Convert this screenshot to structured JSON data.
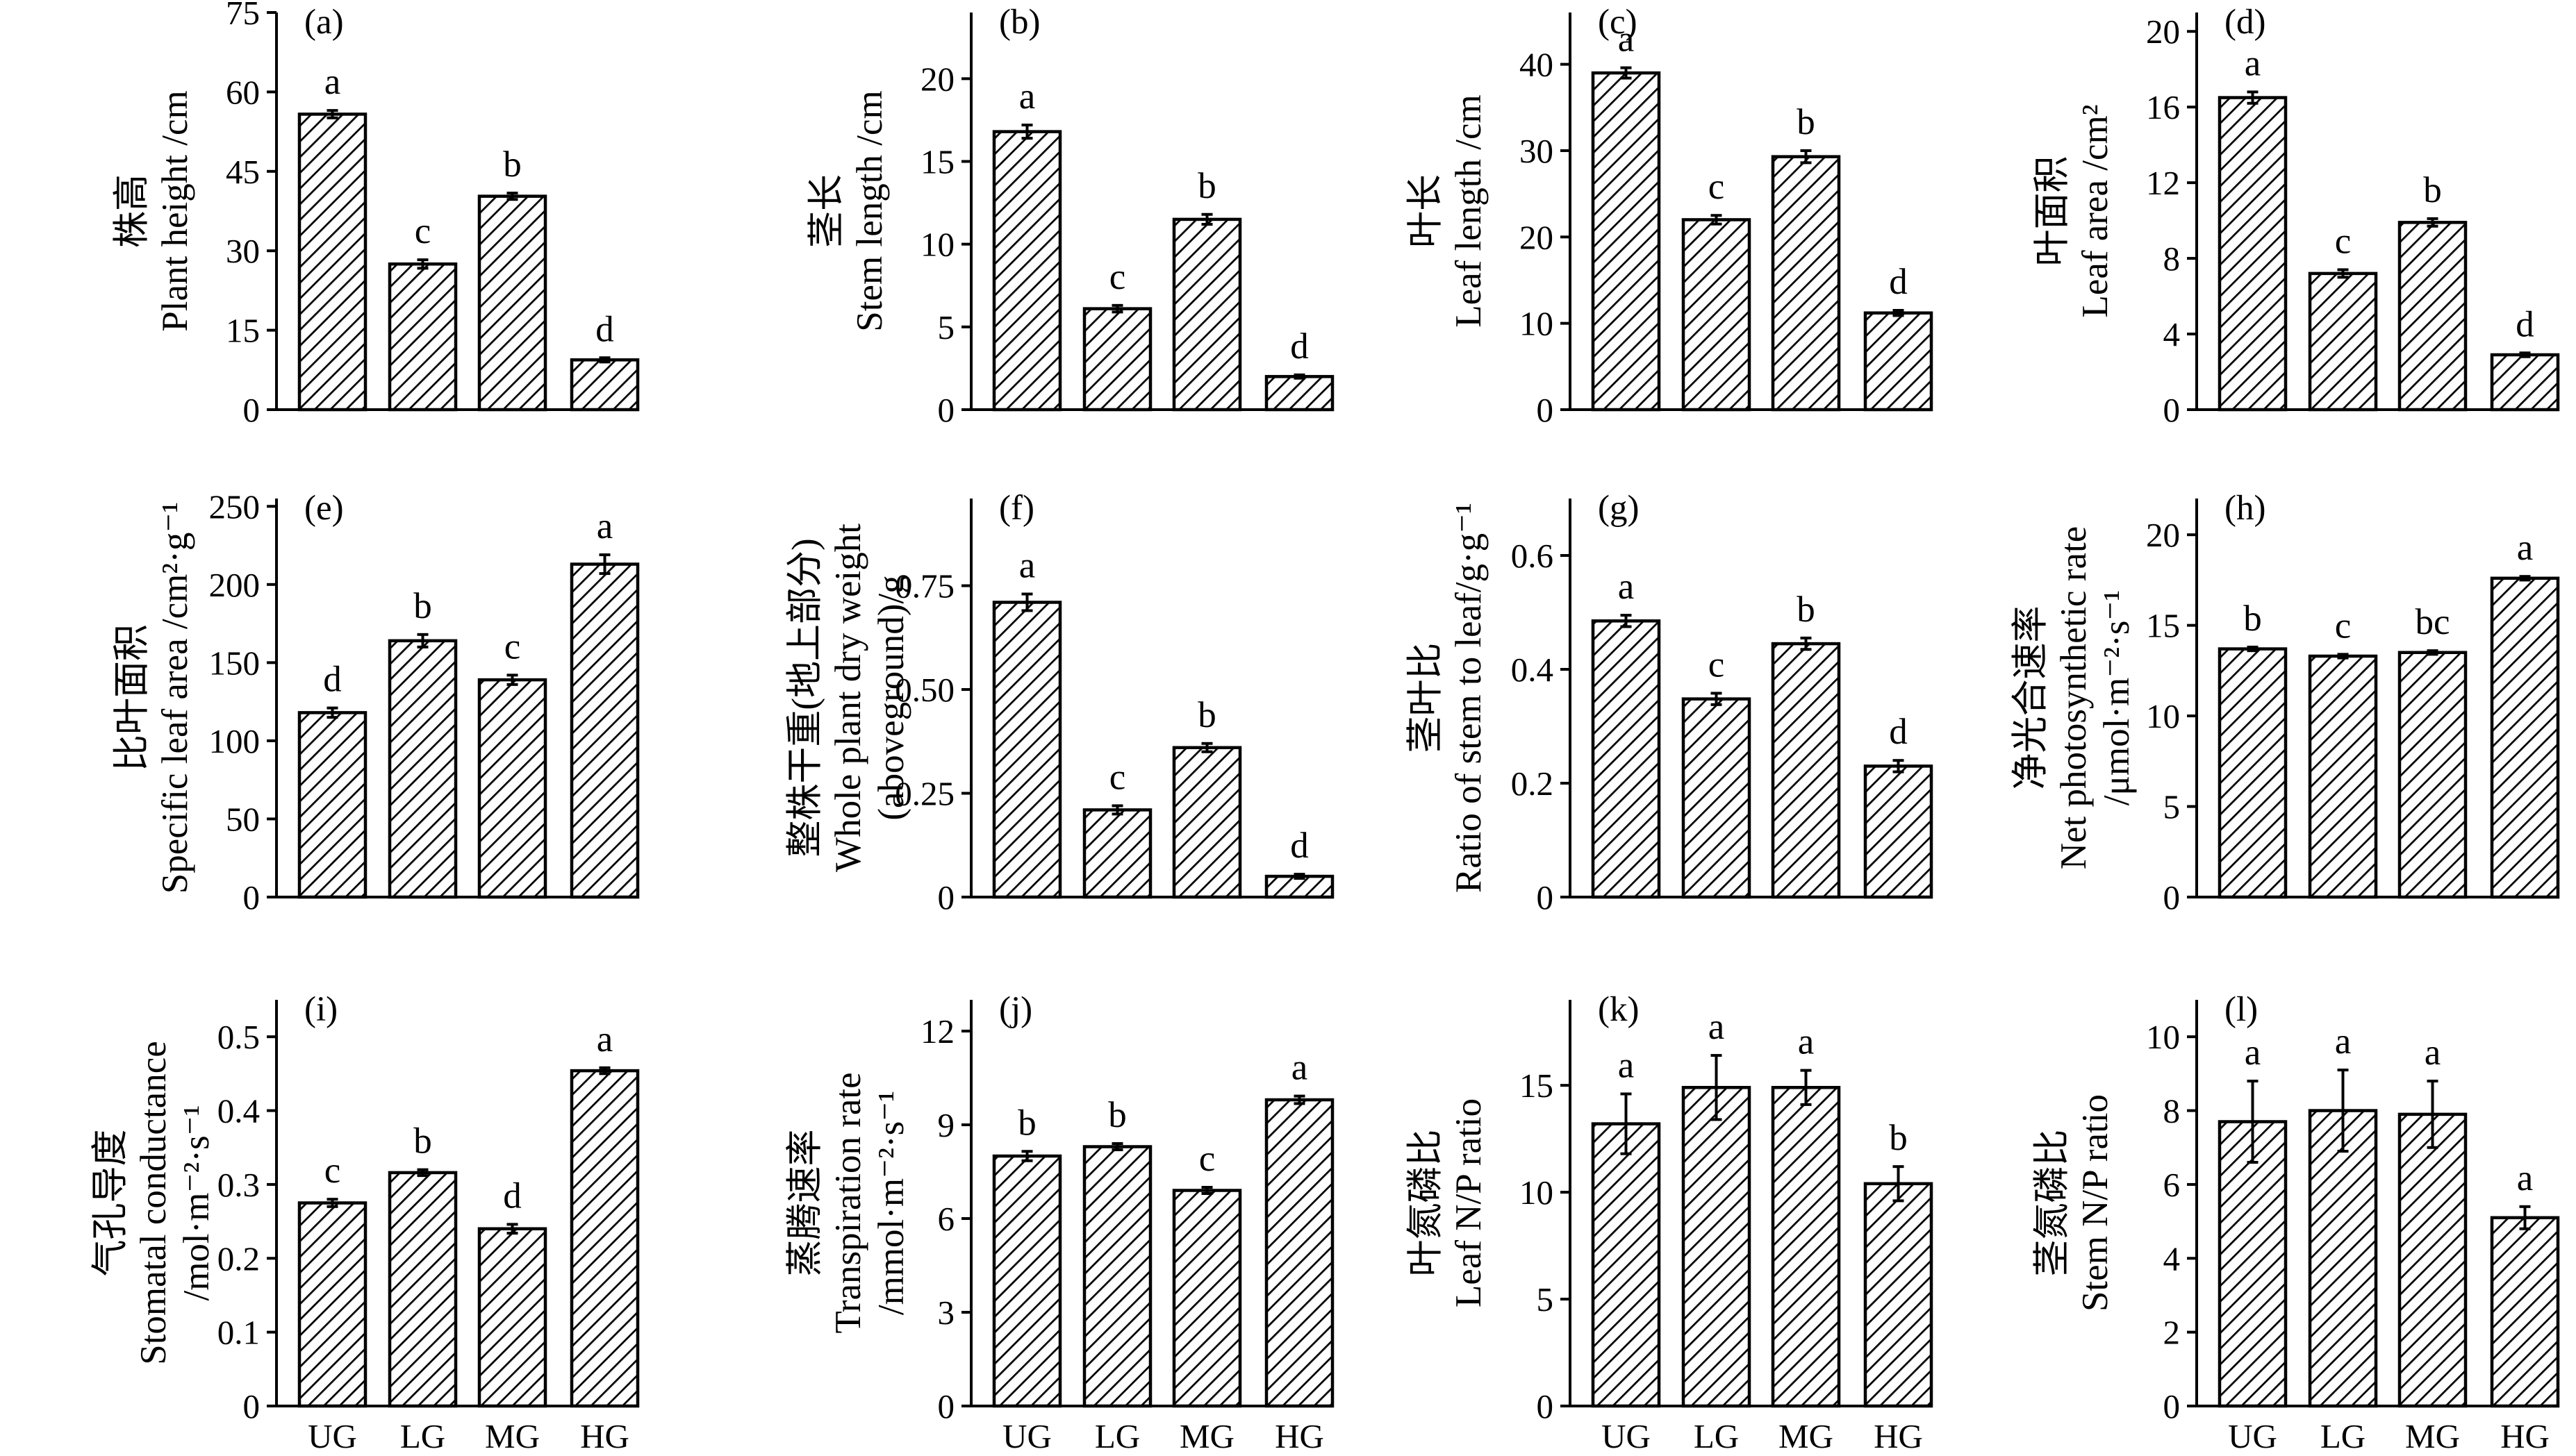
{
  "chart_data": [
    {
      "type": "bar",
      "panel": "(a)",
      "ylabel": [
        "株高",
        "Plant height /cm"
      ],
      "categories": [
        "UG",
        "LG",
        "MG",
        "HG"
      ],
      "values": [
        55.8,
        27.5,
        40.3,
        9.4
      ],
      "errors": [
        0.7,
        0.8,
        0.6,
        0.4
      ],
      "letters": [
        "a",
        "c",
        "b",
        "d"
      ],
      "ylim": [
        0,
        75
      ],
      "yticks": [
        0,
        15,
        30,
        45,
        60,
        75
      ],
      "ytick_labels": [
        "0",
        "15",
        "30",
        "45",
        "60",
        "75"
      ]
    },
    {
      "type": "bar",
      "panel": "(b)",
      "ylabel": [
        "茎长",
        "Stem length /cm"
      ],
      "categories": [
        "UG",
        "LG",
        "MG",
        "HG"
      ],
      "values": [
        16.8,
        6.1,
        11.5,
        2.0
      ],
      "errors": [
        0.4,
        0.2,
        0.3,
        0.1
      ],
      "letters": [
        "a",
        "c",
        "b",
        "d"
      ],
      "ylim": [
        0,
        24
      ],
      "yticks": [
        0,
        5,
        10,
        15,
        20
      ],
      "ytick_labels": [
        "0",
        "5",
        "10",
        "15",
        "20"
      ]
    },
    {
      "type": "bar",
      "panel": "(c)",
      "ylabel": [
        "叶长",
        "Leaf length /cm"
      ],
      "categories": [
        "UG",
        "LG",
        "MG",
        "HG"
      ],
      "values": [
        39.0,
        22.0,
        29.3,
        11.2
      ],
      "errors": [
        0.6,
        0.5,
        0.7,
        0.3
      ],
      "letters": [
        "a",
        "c",
        "b",
        "d"
      ],
      "ylim": [
        0,
        46
      ],
      "yticks": [
        0,
        10,
        20,
        30,
        40
      ],
      "ytick_labels": [
        "0",
        "10",
        "20",
        "30",
        "40"
      ]
    },
    {
      "type": "bar",
      "panel": "(d)",
      "ylabel": [
        "叶面积",
        "Leaf area /cm²"
      ],
      "categories": [
        "UG",
        "LG",
        "MG",
        "HG"
      ],
      "values": [
        16.5,
        7.2,
        9.9,
        2.9
      ],
      "errors": [
        0.3,
        0.2,
        0.2,
        0.1
      ],
      "letters": [
        "a",
        "c",
        "b",
        "d"
      ],
      "ylim": [
        0,
        21
      ],
      "yticks": [
        0,
        4,
        8,
        12,
        16,
        20
      ],
      "ytick_labels": [
        "0",
        "4",
        "8",
        "12",
        "16",
        "20"
      ]
    },
    {
      "type": "bar",
      "panel": "(e)",
      "ylabel": [
        "比叶面积",
        "Specific leaf area /cm²·g⁻¹"
      ],
      "categories": [
        "UG",
        "LG",
        "MG",
        "HG"
      ],
      "values": [
        118,
        164,
        139,
        213
      ],
      "errors": [
        3,
        4,
        3,
        6
      ],
      "letters": [
        "d",
        "b",
        "c",
        "a"
      ],
      "ylim": [
        0,
        255
      ],
      "yticks": [
        0,
        50,
        100,
        150,
        200,
        250
      ],
      "ytick_labels": [
        "0",
        "50",
        "100",
        "150",
        "200",
        "250"
      ]
    },
    {
      "type": "bar",
      "panel": "(f)",
      "ylabel": [
        "整株干重(地上部分)",
        "Whole plant dry weight",
        "(aboveground)/g"
      ],
      "categories": [
        "UG",
        "LG",
        "MG",
        "HG"
      ],
      "values": [
        0.71,
        0.21,
        0.36,
        0.05
      ],
      "errors": [
        0.02,
        0.01,
        0.01,
        0.005
      ],
      "letters": [
        "a",
        "c",
        "b",
        "d"
      ],
      "ylim": [
        0,
        0.96
      ],
      "yticks": [
        0,
        0.25,
        0.5,
        0.75
      ],
      "ytick_labels": [
        "0",
        "0.25",
        "0.50",
        "0.75"
      ]
    },
    {
      "type": "bar",
      "panel": "(g)",
      "ylabel": [
        "茎叶比",
        "Ratio of stem to leaf/g·g⁻¹"
      ],
      "categories": [
        "UG",
        "LG",
        "MG",
        "HG"
      ],
      "values": [
        0.485,
        0.348,
        0.445,
        0.23
      ],
      "errors": [
        0.01,
        0.01,
        0.01,
        0.01
      ],
      "letters": [
        "a",
        "c",
        "b",
        "d"
      ],
      "ylim": [
        0,
        0.7
      ],
      "yticks": [
        0,
        0.2,
        0.4,
        0.6
      ],
      "ytick_labels": [
        "0",
        "0.2",
        "0.4",
        "0.6"
      ]
    },
    {
      "type": "bar",
      "panel": "(h)",
      "ylabel": [
        "净光合速率",
        "Net photosynthetic rate",
        "/μmol·m⁻²·s⁻¹"
      ],
      "categories": [
        "UG",
        "LG",
        "MG",
        "HG"
      ],
      "values": [
        13.7,
        13.3,
        13.5,
        17.6
      ],
      "errors": [
        0.1,
        0.1,
        0.1,
        0.1
      ],
      "letters": [
        "b",
        "c",
        "bc",
        "a"
      ],
      "ylim": [
        0,
        22
      ],
      "yticks": [
        0,
        5,
        10,
        15,
        20
      ],
      "ytick_labels": [
        "0",
        "5",
        "10",
        "15",
        "20"
      ]
    },
    {
      "type": "bar",
      "panel": "(i)",
      "ylabel": [
        "气孔导度",
        "Stomatal conductance",
        "/mol·m⁻²·s⁻¹"
      ],
      "categories": [
        "UG",
        "LG",
        "MG",
        "HG"
      ],
      "values": [
        0.275,
        0.316,
        0.24,
        0.454
      ],
      "errors": [
        0.005,
        0.004,
        0.006,
        0.004
      ],
      "letters": [
        "c",
        "b",
        "d",
        "a"
      ],
      "ylim": [
        0,
        0.55
      ],
      "yticks": [
        0,
        0.1,
        0.2,
        0.3,
        0.4,
        0.5
      ],
      "ytick_labels": [
        "0",
        "0.1",
        "0.2",
        "0.3",
        "0.4",
        "0.5"
      ]
    },
    {
      "type": "bar",
      "panel": "(j)",
      "ylabel": [
        "蒸腾速率",
        "Transpiration rate",
        "/mmol·m⁻²·s⁻¹"
      ],
      "categories": [
        "UG",
        "LG",
        "MG",
        "HG"
      ],
      "values": [
        8.0,
        8.3,
        6.9,
        9.8
      ],
      "errors": [
        0.15,
        0.1,
        0.1,
        0.12
      ],
      "letters": [
        "b",
        "b",
        "c",
        "a"
      ],
      "ylim": [
        0,
        13
      ],
      "yticks": [
        0,
        3,
        6,
        9,
        12
      ],
      "ytick_labels": [
        "0",
        "3",
        "6",
        "9",
        "12"
      ]
    },
    {
      "type": "bar",
      "panel": "(k)",
      "ylabel": [
        "叶氮磷比",
        "Leaf N/P ratio"
      ],
      "categories": [
        "UG",
        "LG",
        "MG",
        "HG"
      ],
      "values": [
        13.2,
        14.9,
        14.9,
        10.4
      ],
      "errors": [
        1.4,
        1.5,
        0.8,
        0.8
      ],
      "letters": [
        "a",
        "a",
        "a",
        "b"
      ],
      "ylim": [
        0,
        19
      ],
      "yticks": [
        0,
        5,
        10,
        15
      ],
      "ytick_labels": [
        "0",
        "5",
        "10",
        "15"
      ]
    },
    {
      "type": "bar",
      "panel": "(l)",
      "ylabel": [
        "茎氮磷比",
        "Stem N/P ratio"
      ],
      "categories": [
        "UG",
        "LG",
        "MG",
        "HG"
      ],
      "values": [
        7.7,
        8.0,
        7.9,
        5.1
      ],
      "errors": [
        1.1,
        1.1,
        0.9,
        0.3
      ],
      "letters": [
        "a",
        "a",
        "a",
        "a"
      ],
      "ylim": [
        0,
        11
      ],
      "yticks": [
        0,
        2,
        4,
        6,
        8,
        10
      ],
      "ytick_labels": [
        "0",
        "2",
        "4",
        "6",
        "8",
        "10"
      ]
    }
  ]
}
